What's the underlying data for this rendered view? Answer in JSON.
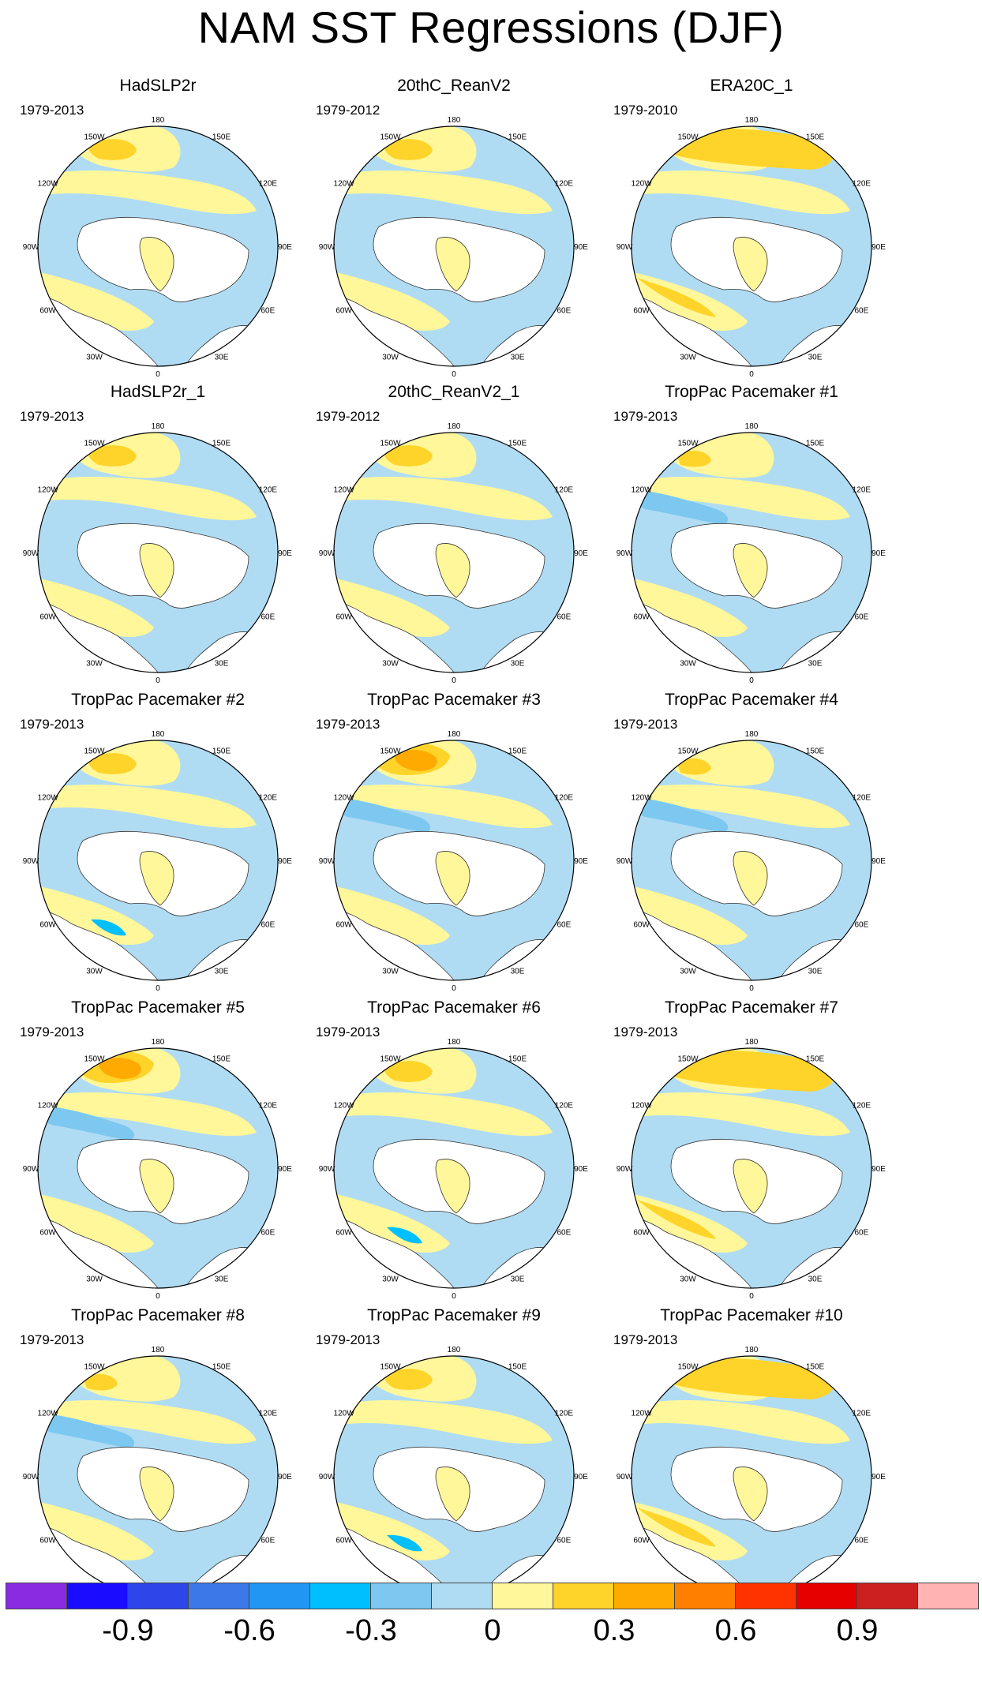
{
  "title": "NAM SST Regressions (DJF)",
  "longitude_labels": [
    "180",
    "150E",
    "120E",
    "90E",
    "60E",
    "30E",
    "0",
    "30W",
    "60W",
    "90W",
    "120W",
    "150W"
  ],
  "panels": [
    {
      "title": "HadSLP2r",
      "years": "1979-2013",
      "variant": 0
    },
    {
      "title": "20thC_ReanV2",
      "years": "1979-2012",
      "variant": 1
    },
    {
      "title": "ERA20C_1",
      "years": "1979-2010",
      "variant": 2
    },
    {
      "title": "HadSLP2r_1",
      "years": "1979-2013",
      "variant": 0
    },
    {
      "title": "20thC_ReanV2_1",
      "years": "1979-2012",
      "variant": 1
    },
    {
      "title": "TropPac Pacemaker #1",
      "years": "1979-2013",
      "variant": 3
    },
    {
      "title": "TropPac Pacemaker #2",
      "years": "1979-2013",
      "variant": 4
    },
    {
      "title": "TropPac Pacemaker #3",
      "years": "1979-2013",
      "variant": 5
    },
    {
      "title": "TropPac Pacemaker #4",
      "years": "1979-2013",
      "variant": 3
    },
    {
      "title": "TropPac Pacemaker #5",
      "years": "1979-2013",
      "variant": 5
    },
    {
      "title": "TropPac Pacemaker #6",
      "years": "1979-2013",
      "variant": 4
    },
    {
      "title": "TropPac Pacemaker #7",
      "years": "1979-2013",
      "variant": 2
    },
    {
      "title": "TropPac Pacemaker #8",
      "years": "1979-2013",
      "variant": 3
    },
    {
      "title": "TropPac Pacemaker #9",
      "years": "1979-2013",
      "variant": 4
    },
    {
      "title": "TropPac Pacemaker #10",
      "years": "1979-2013",
      "variant": 2
    }
  ],
  "colorbar": {
    "colors": [
      "#8a2be2",
      "#1a0dff",
      "#2e45e8",
      "#3c78e8",
      "#2196f3",
      "#00bfff",
      "#7cc8f0",
      "#b0dcf3",
      "#fff79a",
      "#ffd42a",
      "#ffaa00",
      "#ff7f00",
      "#ff3300",
      "#e60000",
      "#cc1f1f",
      "#ffb3b3"
    ],
    "labels": [
      "-0.9",
      "-0.6",
      "-0.3",
      "0",
      "0.3",
      "0.6",
      "0.9"
    ]
  }
}
